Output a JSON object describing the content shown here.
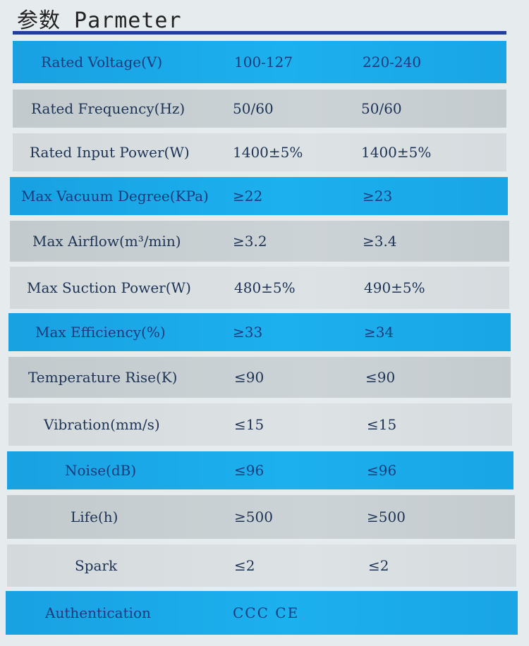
{
  "header": {
    "title": "参数 Parmeter"
  },
  "rows": [
    {
      "label": "Rated Voltage(V)",
      "v1": "100-127",
      "v2": "220-240"
    },
    {
      "label": "Rated Frequency(Hz)",
      "v1": "50/60",
      "v2": "50/60"
    },
    {
      "label": "Rated Input Power(W)",
      "v1": "1400±5%",
      "v2": "1400±5%"
    },
    {
      "label": "Max Vacuum Degree(KPa)",
      "v1": "≥22",
      "v2": "≥23"
    },
    {
      "label": "Max Airflow(m³/min)",
      "v1": "≥3.2",
      "v2": "≥3.4"
    },
    {
      "label": "Max Suction Power(W)",
      "v1": "480±5%",
      "v2": "490±5%"
    },
    {
      "label": "Max Efficiency(%)",
      "v1": "≥33",
      "v2": "≥34"
    },
    {
      "label": "Temperature Rise(K)",
      "v1": "≤90",
      "v2": "≤90"
    },
    {
      "label": "Vibration(mm/s)",
      "v1": "≤15",
      "v2": "≤15"
    },
    {
      "label": "Noise(dB)",
      "v1": "≤96",
      "v2": "≤96"
    },
    {
      "label": "Life(h)",
      "v1": "≥500",
      "v2": "≥500"
    },
    {
      "label": "Spark",
      "v1": "≤2",
      "v2": "≤2"
    }
  ],
  "authentication": {
    "label": "Authentication",
    "value": "CCC  CE"
  },
  "colors": {
    "rule": "#1f3f9a",
    "blue_row": "#1cb0ee",
    "gray_row": "#ccd3d6",
    "light_row": "#dde2e4",
    "text": "#1d3355"
  }
}
